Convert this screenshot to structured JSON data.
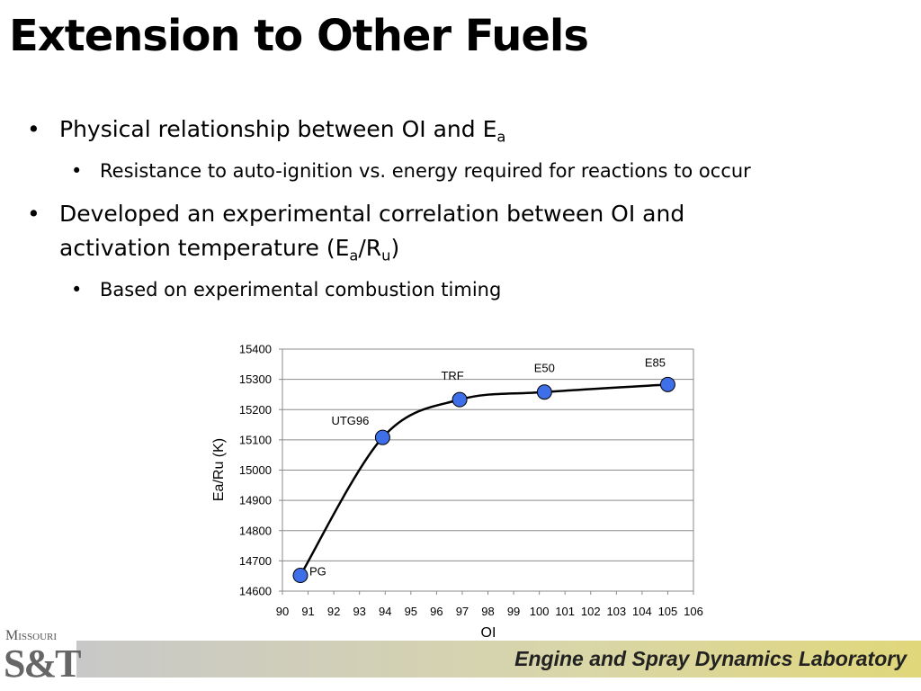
{
  "title": "Extension to Other Fuels",
  "bullets": [
    {
      "level": 1,
      "parts": [
        "Physical relationship between OI and E",
        "a"
      ]
    },
    {
      "level": 2,
      "parts": [
        "Resistance to auto-ignition vs. energy required for reactions to occur"
      ]
    },
    {
      "level": 1,
      "parts": [
        "Developed an experimental correlation between OI and activation temperature (E",
        "a",
        "/R",
        "u",
        ")"
      ]
    },
    {
      "level": 2,
      "parts": [
        "Based on experimental combustion timing"
      ]
    }
  ],
  "chart_data": {
    "type": "scatter",
    "x_label": "OI",
    "y_label": "Ea/Ru (K)",
    "x": [
      90.7,
      93.9,
      96.9,
      100.2,
      105
    ],
    "values": [
      14652,
      15108,
      15233,
      15258,
      15283
    ],
    "point_labels": [
      "PG",
      "UTG96",
      "TRF",
      "E50",
      "E85"
    ],
    "color": "#3f6fe8",
    "trend_line": true,
    "grid": true,
    "xlim": [
      90,
      106
    ],
    "xticks": [
      90,
      91,
      92,
      93,
      94,
      95,
      96,
      97,
      98,
      99,
      100,
      101,
      102,
      103,
      104,
      105,
      106
    ],
    "ylim": [
      14600,
      15400
    ],
    "yticks": [
      14600,
      14700,
      14800,
      14900,
      15000,
      15100,
      15200,
      15300,
      15400
    ]
  },
  "footer": {
    "lab": "Engine and Spray Dynamics Laboratory",
    "logo_top": "Missouri",
    "logo_main": "S&T"
  }
}
